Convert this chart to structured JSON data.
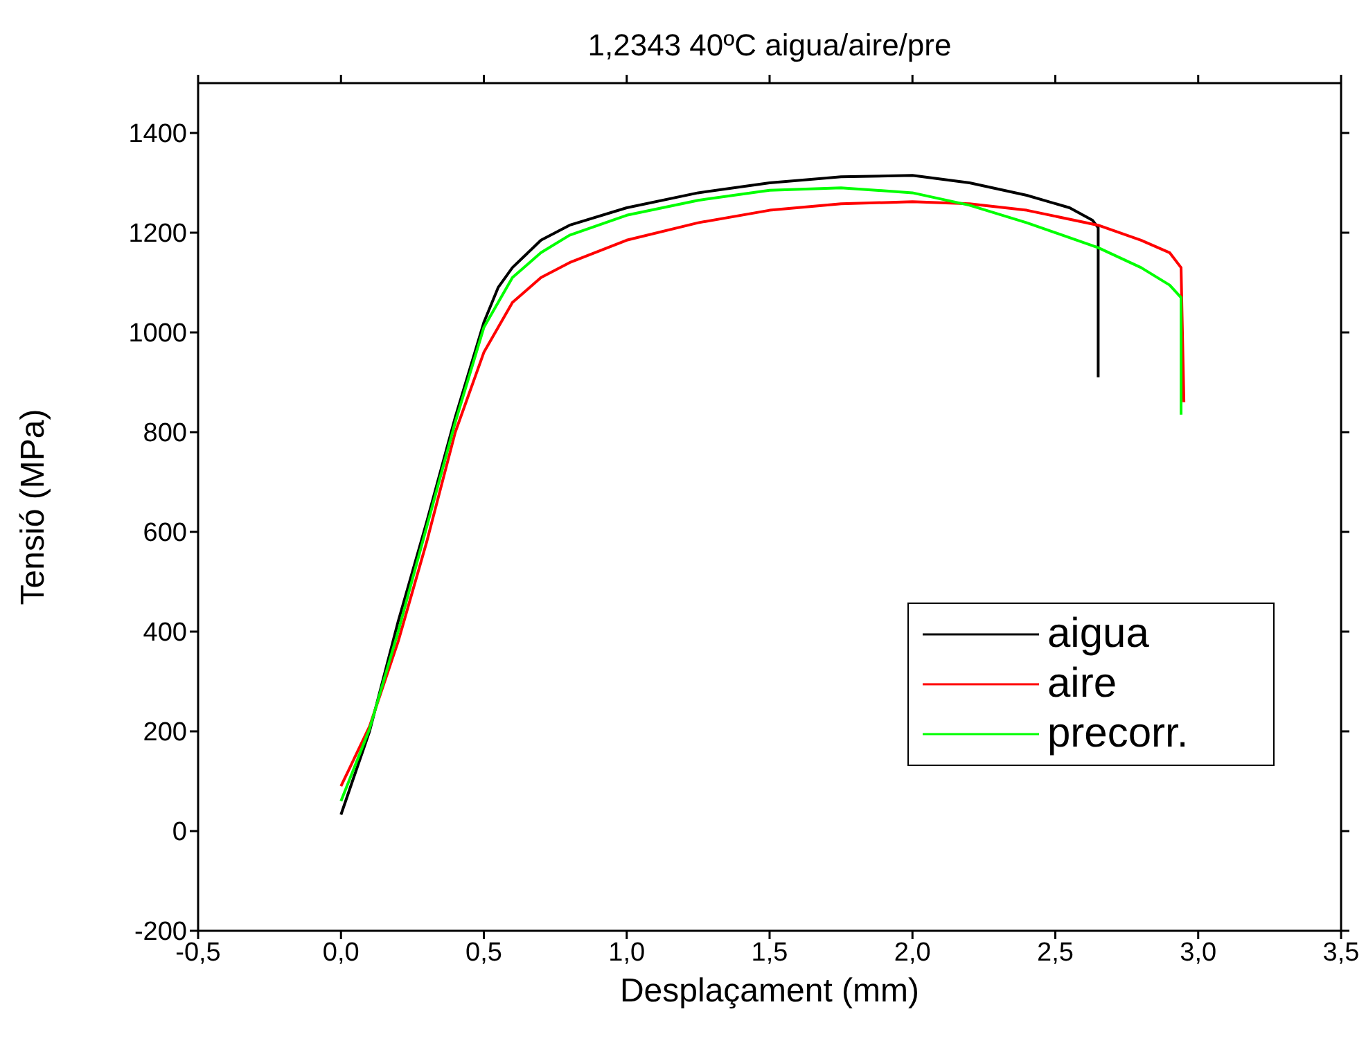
{
  "chart_data": {
    "type": "line",
    "title": "1,2343 40ºC aigua/aire/pre",
    "xlabel": "Desplaçament (mm)",
    "ylabel": "Tensió (MPa)",
    "xlim": [
      -0.5,
      3.5
    ],
    "ylim": [
      -200,
      1500
    ],
    "xticks": [
      {
        "value": -0.5,
        "label": "-0,5"
      },
      {
        "value": 0,
        "label": "0,0"
      },
      {
        "value": 0.5,
        "label": "0,5"
      },
      {
        "value": 1,
        "label": "1,0"
      },
      {
        "value": 1.5,
        "label": "1,5"
      },
      {
        "value": 2,
        "label": "2,0"
      },
      {
        "value": 2.5,
        "label": "2,5"
      },
      {
        "value": 3,
        "label": "3,0"
      },
      {
        "value": 3.5,
        "label": "3,5"
      }
    ],
    "yticks": [
      -200,
      0,
      200,
      400,
      600,
      800,
      1000,
      1200,
      1400
    ],
    "grid": false,
    "legend": "bottom right",
    "marker": "none",
    "line_style": "solid",
    "series": [
      {
        "name": "aigua",
        "color": "#000000",
        "x": [
          0,
          0.1,
          0.2,
          0.3,
          0.4,
          0.5,
          0.55,
          0.6,
          0.7,
          0.8,
          1.0,
          1.25,
          1.5,
          1.75,
          2.0,
          2.2,
          2.4,
          2.55,
          2.63,
          2.65,
          2.65
        ],
        "values": [
          33,
          200,
          420,
          620,
          830,
          1020,
          1090,
          1130,
          1185,
          1215,
          1250,
          1280,
          1300,
          1312,
          1315,
          1300,
          1275,
          1250,
          1225,
          1210,
          910
        ]
      },
      {
        "name": "aire",
        "color": "#ff0000",
        "x": [
          0,
          0.1,
          0.2,
          0.3,
          0.4,
          0.5,
          0.6,
          0.7,
          0.8,
          1.0,
          1.25,
          1.5,
          1.75,
          2.0,
          2.2,
          2.4,
          2.65,
          2.8,
          2.9,
          2.94,
          2.95
        ],
        "values": [
          90,
          210,
          380,
          580,
          800,
          960,
          1060,
          1110,
          1140,
          1185,
          1220,
          1245,
          1258,
          1262,
          1258,
          1245,
          1215,
          1185,
          1160,
          1130,
          860
        ]
      },
      {
        "name": "precorr.",
        "color": "#00ff00",
        "x": [
          0,
          0.1,
          0.2,
          0.3,
          0.4,
          0.5,
          0.6,
          0.7,
          0.8,
          1.0,
          1.25,
          1.5,
          1.75,
          2.0,
          2.2,
          2.4,
          2.65,
          2.8,
          2.9,
          2.94,
          2.94
        ],
        "values": [
          60,
          205,
          400,
          610,
          820,
          1010,
          1110,
          1160,
          1195,
          1235,
          1265,
          1285,
          1290,
          1280,
          1255,
          1220,
          1170,
          1130,
          1095,
          1070,
          835
        ]
      }
    ]
  }
}
